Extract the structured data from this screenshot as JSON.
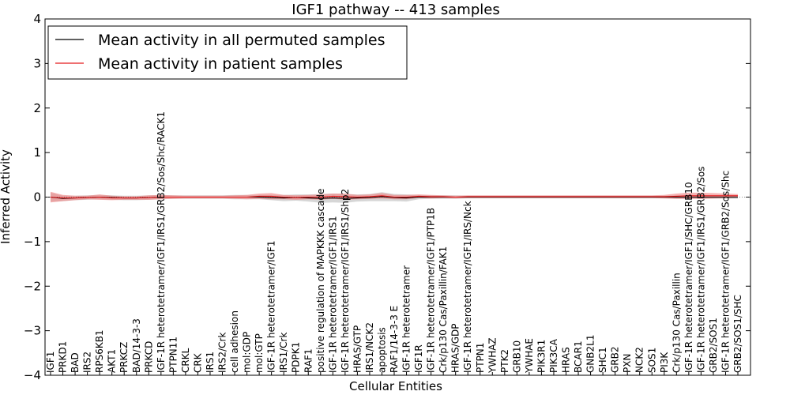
{
  "chart_data": {
    "type": "line",
    "title": "IGF1 pathway -- 413 samples",
    "xlabel": "Cellular Entities",
    "ylabel": "Inferred Activity",
    "ylim": [
      -4,
      4
    ],
    "yticks": [
      "−4",
      "−3",
      "−2",
      "−1",
      "0",
      "1",
      "2",
      "3",
      "4"
    ],
    "legend_position": "top-left",
    "colors": {
      "permuted_line": "#000000",
      "patient_line": "#e31a1c",
      "permuted_band": "#c8c8c8",
      "patient_band": "#f08080"
    },
    "categories": [
      "IGF1",
      "PRKD1",
      "BAD",
      "IRS2",
      "RPS6KB1",
      "AKT1",
      "PRKCZ",
      "BAD/14-3-3",
      "PRKCD",
      "IGF-1R heterotetramer/IGF1/IRS1/GRB2/Sos/Shc/RACK1",
      "PTPN11",
      "CRKL",
      "CRK",
      "IRS1",
      "IRS2/Crk",
      "cell adhesion",
      "mol:GDP",
      "mol:GTP",
      "IGF-1R heterotetramer/IGF1",
      "IRS1/Crk",
      "PDPK1",
      "RAF1",
      "positive regulation of MAPKKK cascade",
      "IGF-1R heterotetramer/IGF1/IRS1",
      "IGF-1R heterotetramer/IGF1/IRS1/Shp2",
      "HRAS/GTP",
      "IRS1/NCK2",
      "apoptosis",
      "RAF1/14-3-3 E",
      "IGF-1R heterotetramer",
      "IGF1R",
      "IGF-1R heterotetramer/IGF1/PTP1B",
      "Crk/p130 Cas/Paxillin/FAK1",
      "HRAS/GDP",
      "IGF-1R heterotetramer/IGF1/IRS/Nck",
      "PTPN1",
      "YWHAZ",
      "PTK2",
      "GRB10",
      "YWHAE",
      "PIK3R1",
      "PIK3CA",
      "HRAS",
      "BCAR1",
      "GNB2L1",
      "SHC1",
      "GRB2",
      "PXN",
      "NCK2",
      "SOS1",
      "PI3K",
      "Crk/p130 Cas/Paxillin",
      "IGF-1R heterotetramer/IGF1/SHC/GRB10",
      "IGF-1R heterotetramer/IGF1/IRS1/GRB2/Sos",
      "GRB2/SOS1",
      "IGF-1R heterotetramer/IGF1/GRB2/Sos/Shc",
      "GRB2/SOS1/SHC"
    ],
    "series": [
      {
        "name": "Mean activity in all permuted samples",
        "values": [
          0,
          -0.03,
          -0.02,
          -0.01,
          0,
          -0.01,
          -0.02,
          -0.02,
          -0.01,
          0,
          0,
          0,
          0,
          0,
          0,
          0,
          0,
          0,
          -0.01,
          -0.02,
          -0.01,
          -0.02,
          -0.03,
          -0.02,
          -0.03,
          -0.02,
          -0.01,
          0.01,
          -0.01,
          -0.02,
          0,
          0,
          0,
          0,
          0,
          0,
          0,
          0,
          0,
          0,
          0,
          0,
          0,
          0,
          0,
          0,
          0,
          0,
          0,
          0,
          0,
          0,
          0,
          0,
          0,
          0,
          0
        ],
        "band": [
          0.1,
          0.06,
          0.05,
          0.05,
          0.05,
          0.05,
          0.05,
          0.05,
          0.05,
          0.05,
          0.04,
          0.04,
          0.04,
          0.04,
          0.04,
          0.05,
          0.05,
          0.05,
          0.06,
          0.07,
          0.07,
          0.08,
          0.1,
          0.1,
          0.1,
          0.08,
          0.08,
          0.1,
          0.08,
          0.08,
          0.05,
          0.04,
          0.04,
          0.04,
          0.03,
          0.03,
          0.03,
          0.03,
          0.03,
          0.03,
          0.03,
          0.03,
          0.03,
          0.03,
          0.03,
          0.03,
          0.03,
          0.03,
          0.03,
          0.03,
          0.03,
          0.04,
          0.04,
          0.04,
          0.04,
          0.04,
          0.04
        ]
      },
      {
        "name": "Mean activity in patient samples",
        "values": [
          0,
          -0.02,
          -0.02,
          -0.01,
          0,
          -0.02,
          -0.02,
          -0.02,
          -0.01,
          0,
          0,
          0,
          0,
          0,
          0,
          0,
          0,
          0.02,
          0.02,
          0,
          -0.01,
          0,
          0,
          0.02,
          0.01,
          0,
          0.01,
          0.03,
          0,
          0,
          0.02,
          0.01,
          0.01,
          0,
          0.01,
          0.01,
          0.01,
          0.01,
          0.01,
          0.01,
          0.01,
          0.01,
          0.01,
          0.01,
          0.01,
          0.01,
          0.01,
          0.01,
          0.01,
          0.01,
          0.01,
          0.02,
          0.03,
          0.03,
          0.03,
          0.03,
          0.03
        ],
        "band": [
          0.12,
          0.07,
          0.05,
          0.04,
          0.06,
          0.05,
          0.04,
          0.04,
          0.05,
          0.05,
          0.04,
          0.03,
          0.03,
          0.03,
          0.03,
          0.04,
          0.05,
          0.06,
          0.07,
          0.05,
          0.05,
          0.05,
          0.06,
          0.06,
          0.07,
          0.05,
          0.05,
          0.06,
          0.05,
          0.05,
          0.04,
          0.04,
          0.03,
          0.03,
          0.03,
          0.03,
          0.03,
          0.03,
          0.03,
          0.03,
          0.03,
          0.03,
          0.03,
          0.03,
          0.03,
          0.03,
          0.03,
          0.03,
          0.03,
          0.03,
          0.04,
          0.06,
          0.07,
          0.07,
          0.06,
          0.05,
          0.04
        ]
      }
    ]
  }
}
